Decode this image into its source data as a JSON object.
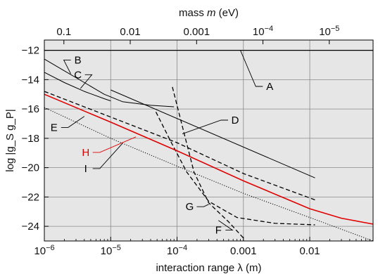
{
  "chart_data": {
    "type": "line",
    "title": "",
    "xlabel": "interaction range λ (m)",
    "ylabel": "log |g_S g_P|",
    "top_xlabel": "mass m (eV)",
    "x_scale": "log",
    "xlim": [
      1e-06,
      0.09
    ],
    "ylim": [
      -25.0,
      -11.3
    ],
    "grid": true,
    "background": "#e6e6e6",
    "x_ticks": [
      {
        "value": 1e-06,
        "label": "10",
        "sup": "−6"
      },
      {
        "value": 1e-05,
        "label": "10",
        "sup": "−5"
      },
      {
        "value": 0.0001,
        "label": "10",
        "sup": "−4"
      },
      {
        "value": 0.001,
        "label": "0.001",
        "sup": ""
      },
      {
        "value": 0.01,
        "label": "0.01",
        "sup": ""
      }
    ],
    "top_ticks": [
      {
        "value": 0.1,
        "label": "0.1",
        "sup": ""
      },
      {
        "value": 0.01,
        "label": "0.01",
        "sup": ""
      },
      {
        "value": 0.001,
        "label": "0.001",
        "sup": ""
      },
      {
        "value": 0.0001,
        "label": "10",
        "sup": "−4"
      },
      {
        "value": 1e-05,
        "label": "10",
        "sup": "−5"
      }
    ],
    "mass_to_range_factor": 1.97e-07,
    "y_ticks": [
      {
        "value": -24,
        "label": "−24"
      },
      {
        "value": -22,
        "label": "−22"
      },
      {
        "value": -20,
        "label": "−20"
      },
      {
        "value": -18,
        "label": "−18"
      },
      {
        "value": -16,
        "label": "−16"
      },
      {
        "value": -14,
        "label": "−14"
      },
      {
        "value": -12,
        "label": "−12"
      }
    ],
    "series": [
      {
        "name": "A",
        "color": "#000000",
        "dash": "solid",
        "width": 1.2,
        "points": [
          [
            1e-06,
            -12.0
          ],
          [
            0.09,
            -12.0
          ]
        ],
        "label_pos": [
          0.0025,
          -14.7
        ],
        "leader": [
          0.0009,
          -12.0
        ]
      },
      {
        "name": "B",
        "color": "#000000",
        "dash": "solid",
        "width": 1.0,
        "points": [
          [
            1e-06,
            -12.6
          ],
          [
            2e-06,
            -13.4
          ],
          [
            4e-06,
            -14.2
          ],
          [
            8e-06,
            -15.0
          ],
          [
            1.5e-05,
            -15.5
          ],
          [
            4e-05,
            -15.75
          ],
          [
            9e-05,
            -15.85
          ]
        ],
        "label_pos": [
          3.2e-06,
          -12.9
        ],
        "leader": [
          2.5e-06,
          -13.6
        ]
      },
      {
        "name": "C",
        "color": "#000000",
        "dash": "solid",
        "width": 1.0,
        "points": [
          [
            1e-06,
            -13.5
          ],
          [
            2e-06,
            -14.2
          ],
          [
            4e-06,
            -14.8
          ],
          [
            8e-06,
            -15.3
          ],
          [
            1e-05,
            -15.45
          ]
        ],
        "label_pos": [
          3.2e-06,
          -13.9
        ],
        "leader": [
          3.5e-06,
          -14.6
        ]
      },
      {
        "name": "D",
        "color": "#000000",
        "dash": "solid",
        "width": 1.0,
        "points": [
          [
            1e-05,
            -14.7
          ],
          [
            0.012,
            -20.7
          ]
        ],
        "label_pos": [
          0.00075,
          -17.0
        ],
        "leader": [
          0.00012,
          -17.7
        ]
      },
      {
        "name": "E",
        "color": "#000000",
        "dash": "dashed",
        "width": 1.3,
        "points": [
          [
            1e-06,
            -14.8
          ],
          [
            1e-05,
            -16.55
          ],
          [
            0.0001,
            -18.3
          ],
          [
            0.001,
            -20.4
          ],
          [
            0.012,
            -22.2
          ]
        ],
        "label_pos": [
          1.4e-06,
          -17.5
        ],
        "leader": [
          4e-06,
          -16.5
        ]
      },
      {
        "name": "F",
        "color": "#000000",
        "dash": "dashed",
        "width": 1.3,
        "points": [
          [
            8.5e-05,
            -14.5
          ],
          [
            0.00013,
            -17.8
          ],
          [
            0.00018,
            -20.3
          ],
          [
            0.0003,
            -22.4
          ],
          [
            0.0006,
            -23.7
          ],
          [
            0.001,
            -24.8
          ]
        ],
        "label_pos": [
          0.00042,
          -24.5
        ],
        "leader": [
          0.00042,
          -23.6
        ]
      },
      {
        "name": "G",
        "color": "#000000",
        "dash": "dashed",
        "width": 1.3,
        "points": [
          [
            4.8e-05,
            -16.2
          ],
          [
            8e-05,
            -18.2
          ],
          [
            0.00014,
            -20.3
          ],
          [
            0.0003,
            -22.3
          ],
          [
            0.0008,
            -23.4
          ],
          [
            0.003,
            -23.8
          ],
          [
            0.012,
            -23.9
          ]
        ],
        "label_pos": [
          0.000155,
          -22.9
        ],
        "leader": [
          0.0003,
          -22.5
        ]
      },
      {
        "name": "H",
        "color": "#e00000",
        "dash": "solid",
        "width": 1.6,
        "points": [
          [
            1e-06,
            -15.0
          ],
          [
            1e-05,
            -16.9
          ],
          [
            0.0001,
            -18.85
          ],
          [
            0.001,
            -20.9
          ],
          [
            0.01,
            -22.8
          ],
          [
            0.03,
            -23.45
          ],
          [
            0.09,
            -23.85
          ]
        ],
        "label_pos": [
          4.2e-06,
          -19.2
        ],
        "leader": [
          2.4e-05,
          -17.9
        ]
      },
      {
        "name": "I",
        "color": "#000000",
        "dash": "dotted",
        "width": 1.0,
        "points": [
          [
            1e-06,
            -15.9
          ],
          [
            1e-05,
            -18.0
          ],
          [
            0.0001,
            -19.9
          ],
          [
            0.001,
            -21.75
          ],
          [
            0.01,
            -23.4
          ],
          [
            0.09,
            -25.0
          ]
        ],
        "label_pos": [
          4.2e-06,
          -20.3
        ],
        "leader": [
          1.5e-05,
          -18.35
        ]
      }
    ]
  }
}
